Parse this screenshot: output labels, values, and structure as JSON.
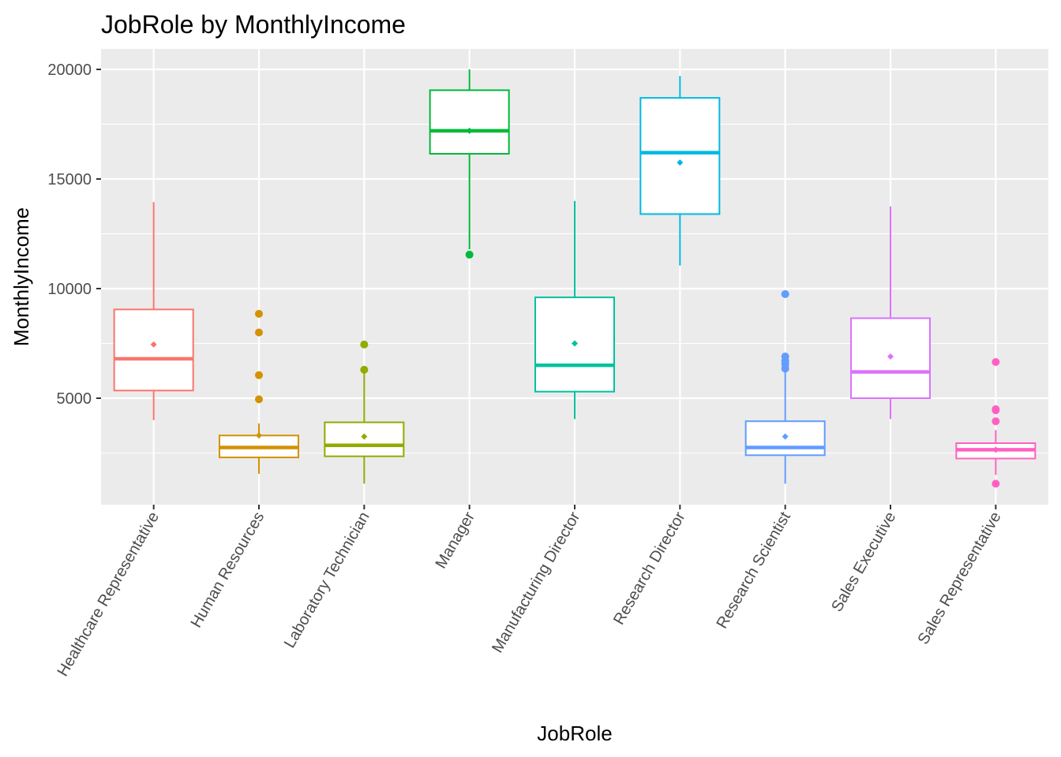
{
  "chart_data": {
    "type": "boxplot",
    "title": "JobRole by MonthlyIncome",
    "xlabel": "JobRole",
    "ylabel": "MonthlyIncome",
    "ylim": [
      0,
      20500
    ],
    "yticks": [
      5000,
      10000,
      15000,
      20000
    ],
    "grid": true,
    "legend": "none",
    "categories": [
      "Healthcare Representative",
      "Human Resources",
      "Laboratory Technician",
      "Manager",
      "Manufacturing Director",
      "Research Director",
      "Research Scientist",
      "Sales Executive",
      "Sales Representative"
    ],
    "boxes": [
      {
        "color": "#F8766D",
        "whisker_low": 4000,
        "q1": 5350,
        "median": 6800,
        "q3": 9050,
        "whisker_high": 13950,
        "mean": 7450,
        "outliers": []
      },
      {
        "color": "#D39200",
        "whisker_low": 1550,
        "q1": 2300,
        "median": 2750,
        "q3": 3300,
        "whisker_high": 3850,
        "mean": 3300,
        "outliers": [
          4950,
          6050,
          8000,
          8850
        ]
      },
      {
        "color": "#93AA00",
        "whisker_low": 1100,
        "q1": 2350,
        "median": 2850,
        "q3": 3900,
        "whisker_high": 6150,
        "mean": 3250,
        "outliers": [
          6300,
          7450
        ]
      },
      {
        "color": "#00BA38",
        "whisker_low": 11800,
        "q1": 16150,
        "median": 17200,
        "q3": 19050,
        "whisker_high": 20000,
        "mean": 17200,
        "outliers": [
          11550
        ]
      },
      {
        "color": "#00C19F",
        "whisker_low": 4050,
        "q1": 5300,
        "median": 6500,
        "q3": 9600,
        "whisker_high": 14000,
        "mean": 7500,
        "outliers": []
      },
      {
        "color": "#00B9E3",
        "whisker_low": 11050,
        "q1": 13400,
        "median": 16200,
        "q3": 18700,
        "whisker_high": 19700,
        "mean": 15750,
        "outliers": []
      },
      {
        "color": "#619CFF",
        "whisker_low": 1100,
        "q1": 2400,
        "median": 2750,
        "q3": 3950,
        "whisker_high": 6250,
        "mean": 3250,
        "outliers": [
          6350,
          6550,
          6700,
          6900,
          9750
        ]
      },
      {
        "color": "#DB72FB",
        "whisker_low": 4050,
        "q1": 5000,
        "median": 6200,
        "q3": 8650,
        "whisker_high": 13750,
        "mean": 6900,
        "outliers": []
      },
      {
        "color": "#FF61C3",
        "whisker_low": 1500,
        "q1": 2250,
        "median": 2650,
        "q3": 2950,
        "whisker_high": 3550,
        "mean": 2650,
        "outliers": [
          1100,
          3950,
          4450,
          4500,
          6650
        ]
      }
    ]
  }
}
